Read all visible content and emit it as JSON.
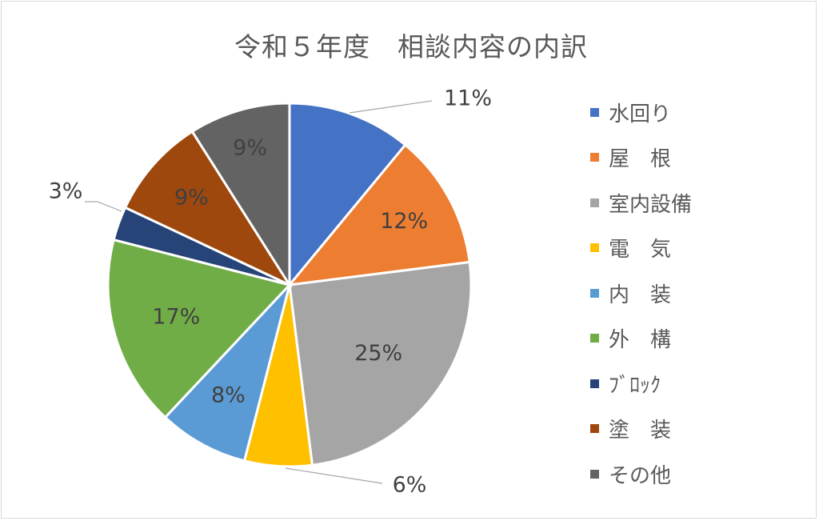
{
  "chart_data": {
    "type": "pie",
    "title": "令和５年度　相談内容の内訳",
    "categories": [
      "水回り",
      "屋　根",
      "室内設備",
      "電　気",
      "内　装",
      "外　構",
      "ﾌﾞﾛｯｸ",
      "塗　装",
      "その他"
    ],
    "values": [
      11,
      12,
      25,
      6,
      8,
      17,
      3,
      9,
      9
    ],
    "value_labels": [
      "11%",
      "12%",
      "25%",
      "6%",
      "8%",
      "17%",
      "3%",
      "9%",
      "9%"
    ],
    "colors": [
      "#4472C4",
      "#ED7D31",
      "#A5A5A5",
      "#FFC000",
      "#5B9BD5",
      "#70AD47",
      "#264478",
      "#9E480E",
      "#636363"
    ],
    "legend_position": "right",
    "start_angle": "top, clockwise"
  }
}
